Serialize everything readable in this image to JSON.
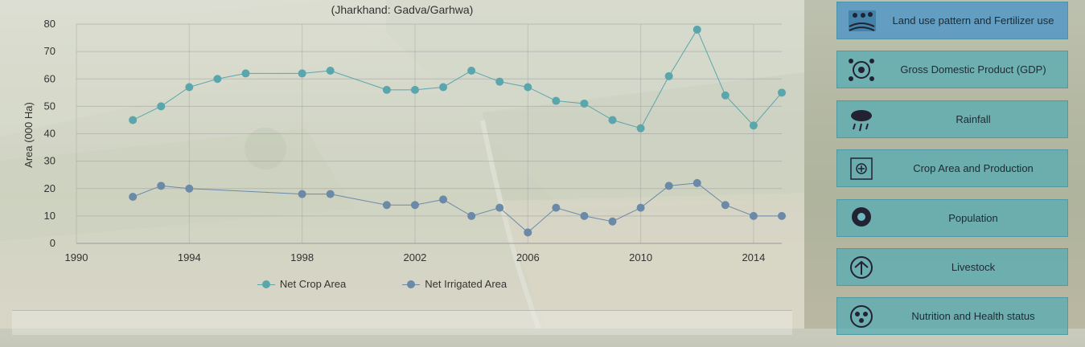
{
  "chart_data": {
    "type": "line",
    "subtitle": "(Jharkhand: Gadva/Garhwa)",
    "ylabel": "Area (000 Ha)",
    "xlabel": "",
    "xlim": [
      1990,
      2015
    ],
    "ylim": [
      0,
      80
    ],
    "xticks": [
      1990,
      1994,
      1998,
      2002,
      2006,
      2010,
      2014
    ],
    "yticks": [
      0,
      10,
      20,
      30,
      40,
      50,
      60,
      70,
      80
    ],
    "grid": true,
    "legend_position": "bottom",
    "x": [
      1992,
      1993,
      1994,
      1995,
      1996,
      1998,
      1999,
      2001,
      2002,
      2003,
      2004,
      2005,
      2006,
      2007,
      2008,
      2009,
      2010,
      2011,
      2012,
      2013,
      2014,
      2015
    ],
    "series": [
      {
        "name": "Net Crop Area",
        "color": "#5aa6ad",
        "values": [
          45,
          50,
          57,
          60,
          62,
          62,
          63,
          56,
          56,
          57,
          63,
          59,
          57,
          52,
          51,
          45,
          42,
          61,
          78,
          54,
          43,
          55
        ]
      },
      {
        "name": "Net Irrigated Area",
        "color": "#6a8aa8",
        "values": [
          17,
          21,
          20,
          null,
          null,
          18,
          18,
          14,
          14,
          16,
          10,
          13,
          4,
          13,
          10,
          8,
          13,
          21,
          22,
          14,
          10,
          10
        ]
      }
    ]
  },
  "nav": {
    "items": [
      {
        "label": "Land use pattern and Fertilizer use",
        "icon": "farm-tractor-icon",
        "active": true
      },
      {
        "label": "Gross Domestic Product (GDP)",
        "icon": "gdp-globe-icon"
      },
      {
        "label": "Rainfall",
        "icon": "rain-cloud-icon"
      },
      {
        "label": "Crop Area and Production",
        "icon": "crop-area-icon"
      },
      {
        "label": "Population",
        "icon": "population-icon"
      },
      {
        "label": "Livestock",
        "icon": "livestock-icon"
      },
      {
        "label": "Nutrition and Health status",
        "icon": "nutrition-icon"
      }
    ]
  }
}
